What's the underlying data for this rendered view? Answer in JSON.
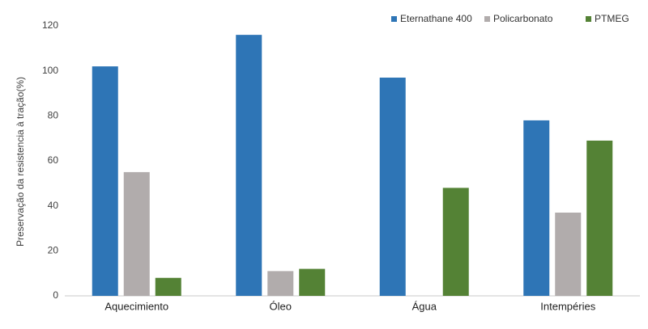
{
  "chart_data": {
    "type": "bar",
    "y_label": "Preservação da resistencia à tração(%)",
    "categories": [
      "Aquecimiento",
      "Óleo",
      "Água",
      "Intempéries"
    ],
    "series": [
      {
        "name": "Eternathane 400",
        "color": "#2e75b6",
        "values": [
          102,
          116,
          97,
          78
        ]
      },
      {
        "name": "Policarbonato",
        "color": "#b1acac",
        "values": [
          55,
          11,
          0,
          37
        ]
      },
      {
        "name": "PTMEG",
        "color": "#548235",
        "values": [
          8,
          12,
          48,
          69
        ]
      }
    ],
    "ylim": [
      0,
      120
    ],
    "yticks": [
      0,
      20,
      40,
      60,
      80,
      100,
      120
    ],
    "grid": false,
    "legend": "top-right"
  }
}
